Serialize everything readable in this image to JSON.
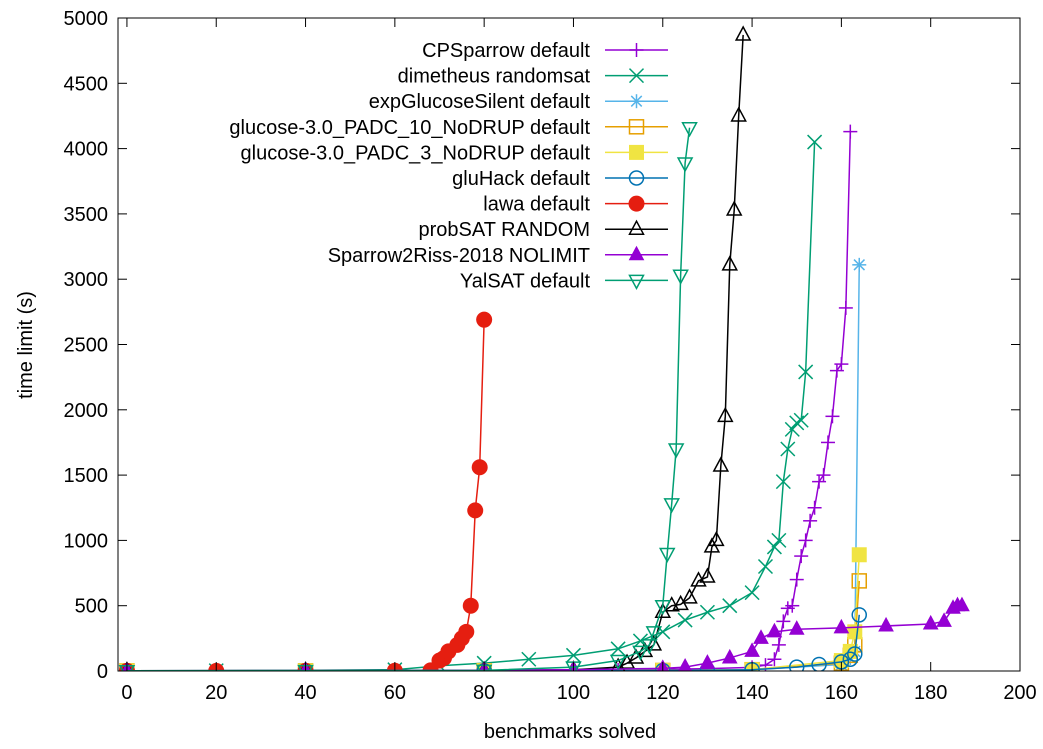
{
  "chart_data": {
    "type": "line",
    "xlabel": "benchmarks solved",
    "ylabel": "time limit (s)",
    "xlim": [
      -2,
      200
    ],
    "ylim": [
      0,
      5000
    ],
    "x_ticks": [
      0,
      20,
      40,
      60,
      80,
      100,
      120,
      140,
      160,
      180,
      200
    ],
    "y_ticks": [
      0,
      500,
      1000,
      1500,
      2000,
      2500,
      3000,
      3500,
      4000,
      4500,
      5000
    ],
    "grid": false,
    "legend_position": "top-right",
    "series": [
      {
        "name": "CPSparrow default",
        "color": "#9400d3",
        "marker": "plus",
        "points": [
          [
            0,
            2
          ],
          [
            20,
            2
          ],
          [
            40,
            2
          ],
          [
            60,
            3
          ],
          [
            80,
            4
          ],
          [
            100,
            6
          ],
          [
            110,
            8
          ],
          [
            120,
            12
          ],
          [
            130,
            18
          ],
          [
            140,
            28
          ],
          [
            143,
            45
          ],
          [
            145,
            90
          ],
          [
            146,
            200
          ],
          [
            147,
            380
          ],
          [
            148,
            480
          ],
          [
            149,
            500
          ],
          [
            150,
            700
          ],
          [
            151,
            880
          ],
          [
            152,
            1000
          ],
          [
            153,
            1150
          ],
          [
            154,
            1250
          ],
          [
            155,
            1450
          ],
          [
            156,
            1500
          ],
          [
            157,
            1750
          ],
          [
            158,
            1950
          ],
          [
            159,
            2300
          ],
          [
            160,
            2350
          ],
          [
            161,
            2780
          ],
          [
            162,
            4130
          ]
        ]
      },
      {
        "name": "dimetheus randomsat",
        "color": "#009e73",
        "marker": "x",
        "points": [
          [
            0,
            2
          ],
          [
            20,
            3
          ],
          [
            40,
            5
          ],
          [
            60,
            10
          ],
          [
            70,
            40
          ],
          [
            80,
            60
          ],
          [
            90,
            90
          ],
          [
            100,
            120
          ],
          [
            110,
            170
          ],
          [
            115,
            230
          ],
          [
            120,
            300
          ],
          [
            125,
            390
          ],
          [
            130,
            450
          ],
          [
            135,
            500
          ],
          [
            140,
            600
          ],
          [
            143,
            800
          ],
          [
            145,
            950
          ],
          [
            146,
            1000
          ],
          [
            147,
            1450
          ],
          [
            148,
            1700
          ],
          [
            149,
            1850
          ],
          [
            150,
            1900
          ],
          [
            151,
            1920
          ],
          [
            152,
            2290
          ],
          [
            154,
            4050
          ]
        ]
      },
      {
        "name": "expGlucoseSilent default",
        "color": "#56b4e9",
        "marker": "star",
        "points": [
          [
            0,
            1
          ],
          [
            40,
            1
          ],
          [
            80,
            2
          ],
          [
            120,
            4
          ],
          [
            140,
            10
          ],
          [
            160,
            50
          ],
          [
            162,
            100
          ],
          [
            163,
            150
          ],
          [
            164,
            3110
          ]
        ]
      },
      {
        "name": "glucose-3.0_PADC_10_NoDRUP default",
        "color": "#e69f00",
        "marker": "square-open",
        "points": [
          [
            0,
            1
          ],
          [
            40,
            1
          ],
          [
            80,
            2
          ],
          [
            120,
            4
          ],
          [
            140,
            10
          ],
          [
            160,
            60
          ],
          [
            162,
            120
          ],
          [
            163,
            200
          ],
          [
            164,
            690
          ]
        ]
      },
      {
        "name": "glucose-3.0_PADC_3_NoDRUP default",
        "color": "#f0e442",
        "marker": "square-filled",
        "points": [
          [
            0,
            1
          ],
          [
            40,
            1
          ],
          [
            80,
            2
          ],
          [
            120,
            4
          ],
          [
            140,
            10
          ],
          [
            160,
            80
          ],
          [
            162,
            150
          ],
          [
            163,
            300
          ],
          [
            164,
            890
          ]
        ]
      },
      {
        "name": "gluHack default",
        "color": "#0072b2",
        "marker": "circle-open",
        "points": [
          [
            0,
            1
          ],
          [
            40,
            1
          ],
          [
            80,
            2
          ],
          [
            120,
            4
          ],
          [
            130,
            6
          ],
          [
            140,
            10
          ],
          [
            150,
            30
          ],
          [
            155,
            50
          ],
          [
            160,
            70
          ],
          [
            162,
            90
          ],
          [
            163,
            130
          ],
          [
            164,
            430
          ]
        ]
      },
      {
        "name": "lawa default",
        "color": "#e51e10",
        "marker": "circle-filled",
        "points": [
          [
            0,
            1
          ],
          [
            20,
            1
          ],
          [
            40,
            1
          ],
          [
            60,
            2
          ],
          [
            68,
            5
          ],
          [
            70,
            80
          ],
          [
            71,
            100
          ],
          [
            72,
            150
          ],
          [
            74,
            200
          ],
          [
            75,
            250
          ],
          [
            76,
            300
          ],
          [
            77,
            500
          ],
          [
            78,
            1230
          ],
          [
            79,
            1560
          ],
          [
            80,
            2690
          ]
        ]
      },
      {
        "name": "probSAT RANDOM",
        "color": "#000000",
        "marker": "triangle-up-open",
        "points": [
          [
            0,
            2
          ],
          [
            40,
            3
          ],
          [
            80,
            5
          ],
          [
            100,
            10
          ],
          [
            110,
            30
          ],
          [
            112,
            60
          ],
          [
            114,
            100
          ],
          [
            116,
            150
          ],
          [
            118,
            200
          ],
          [
            120,
            450
          ],
          [
            122,
            500
          ],
          [
            124,
            510
          ],
          [
            126,
            560
          ],
          [
            128,
            690
          ],
          [
            130,
            720
          ],
          [
            131,
            950
          ],
          [
            132,
            1000
          ],
          [
            133,
            1570
          ],
          [
            134,
            1950
          ],
          [
            135,
            3110
          ],
          [
            136,
            3530
          ],
          [
            137,
            4250
          ],
          [
            138,
            4870
          ]
        ]
      },
      {
        "name": "Sparrow2Riss-2018 NOLIMIT",
        "color": "#9400d3",
        "marker": "triangle-up-filled",
        "points": [
          [
            0,
            2
          ],
          [
            40,
            3
          ],
          [
            80,
            5
          ],
          [
            100,
            10
          ],
          [
            120,
            20
          ],
          [
            125,
            30
          ],
          [
            130,
            60
          ],
          [
            135,
            100
          ],
          [
            140,
            150
          ],
          [
            142,
            250
          ],
          [
            145,
            300
          ],
          [
            150,
            320
          ],
          [
            160,
            330
          ],
          [
            170,
            345
          ],
          [
            180,
            360
          ],
          [
            183,
            380
          ],
          [
            185,
            480
          ],
          [
            186,
            500
          ],
          [
            187,
            500
          ]
        ]
      },
      {
        "name": "YalSAT default",
        "color": "#009e73",
        "marker": "triangle-down-open",
        "points": [
          [
            0,
            2
          ],
          [
            40,
            3
          ],
          [
            80,
            5
          ],
          [
            100,
            30
          ],
          [
            110,
            80
          ],
          [
            115,
            150
          ],
          [
            117,
            200
          ],
          [
            118,
            300
          ],
          [
            120,
            500
          ],
          [
            121,
            900
          ],
          [
            122,
            1280
          ],
          [
            123,
            1700
          ],
          [
            124,
            3030
          ],
          [
            125,
            3890
          ],
          [
            126,
            4160
          ]
        ]
      }
    ]
  }
}
